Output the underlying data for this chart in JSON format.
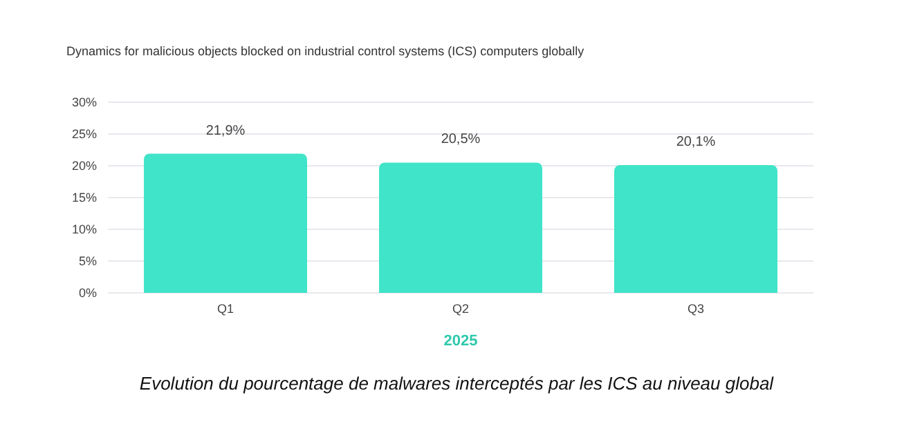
{
  "chart_data": {
    "type": "bar",
    "title": "Dynamics for malicious objects blocked on industrial control systems (ICS) computers globally",
    "categories": [
      "Q1",
      "Q2",
      "Q3"
    ],
    "values": [
      21.9,
      20.5,
      20.1
    ],
    "color": "#40e4c8",
    "value_labels": [
      "21,9%",
      "20,5%",
      "20,1%"
    ],
    "xlabel": "2025",
    "ylim": [
      0,
      30
    ],
    "yticks": [
      {
        "value": 0,
        "label": "0%"
      },
      {
        "value": 5,
        "label": "5%"
      },
      {
        "value": 10,
        "label": "10%"
      },
      {
        "value": 15,
        "label": "15%"
      },
      {
        "value": 20,
        "label": "20%"
      },
      {
        "value": 25,
        "label": "25%"
      },
      {
        "value": 30,
        "label": "30%"
      }
    ],
    "grid": "y",
    "annotations": [
      "Evolution du pourcentage de malwares interceptés par les ICS au niveau global"
    ]
  }
}
